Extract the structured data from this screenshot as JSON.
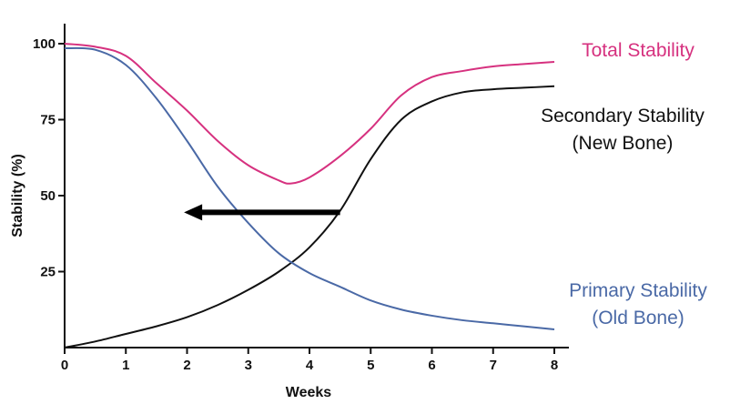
{
  "chart_data": {
    "type": "line",
    "title": "",
    "xlabel": "Weeks",
    "ylabel": "Stability (%)",
    "xlim": [
      0,
      8
    ],
    "ylim": [
      0,
      100
    ],
    "x_ticks": [
      0,
      1,
      2,
      3,
      4,
      5,
      6,
      7,
      8
    ],
    "y_ticks": [
      25,
      50,
      75,
      100
    ],
    "grid": false,
    "legend": "none",
    "series": [
      {
        "key": "total",
        "label_lines": [
          "Total Stability"
        ],
        "color": "#d6317f",
        "x": [
          0,
          0.5,
          1,
          1.5,
          2,
          2.5,
          3,
          3.5,
          3.7,
          4,
          4.5,
          5,
          5.5,
          6,
          6.5,
          7,
          7.5,
          8
        ],
        "y": [
          100,
          99,
          96,
          87,
          78,
          68,
          60,
          55,
          54,
          56,
          63,
          72,
          83,
          89,
          91,
          92.5,
          93.3,
          94
        ]
      },
      {
        "key": "secondary",
        "label_lines": [
          "Secondary Stability",
          "(New Bone)"
        ],
        "color": "#111111",
        "x": [
          0,
          0.5,
          1,
          1.5,
          2,
          2.5,
          3,
          3.5,
          4,
          4.5,
          5,
          5.5,
          6,
          6.5,
          7,
          7.5,
          8
        ],
        "y": [
          0,
          2,
          4.5,
          7,
          10,
          14,
          19,
          25,
          33,
          45,
          62,
          75,
          81,
          84,
          85,
          85.5,
          86
        ]
      },
      {
        "key": "primary",
        "label_lines": [
          "Primary Stability",
          "(Old Bone)"
        ],
        "color": "#4a69a6",
        "x": [
          0,
          0.5,
          1,
          1.5,
          2,
          2.5,
          3,
          3.5,
          4,
          4.5,
          5,
          5.5,
          6,
          6.5,
          7,
          7.5,
          8
        ],
        "y": [
          98.5,
          98,
          93,
          82,
          68,
          53,
          41,
          31,
          24.5,
          20,
          15.5,
          12.5,
          10.5,
          9,
          8,
          7,
          6
        ]
      }
    ],
    "annotations": [
      {
        "type": "arrow",
        "from": {
          "x": 4.5,
          "y": 44.5
        },
        "to": {
          "x": 1.95,
          "y": 44.5
        },
        "color": "#000000"
      }
    ]
  }
}
